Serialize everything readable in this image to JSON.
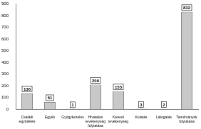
{
  "chart_data": {
    "type": "bar",
    "categories": [
      "Családi együttélés",
      "Egyéb",
      "Gyógykezelés",
      "Hivatalos tevékenység folytatása",
      "Kereső tevékenység",
      "Kutatás",
      "Látogatás",
      "Tanulmányok folytatása"
    ],
    "values": [
      136,
      61,
      1,
      209,
      155,
      3,
      2,
      832
    ],
    "color": "#c8c8c8",
    "ylim": [
      0,
      900
    ],
    "yticks": [
      0,
      100,
      200,
      300,
      400,
      500,
      600,
      700,
      800,
      900
    ],
    "grid": false,
    "data_labels": true
  }
}
